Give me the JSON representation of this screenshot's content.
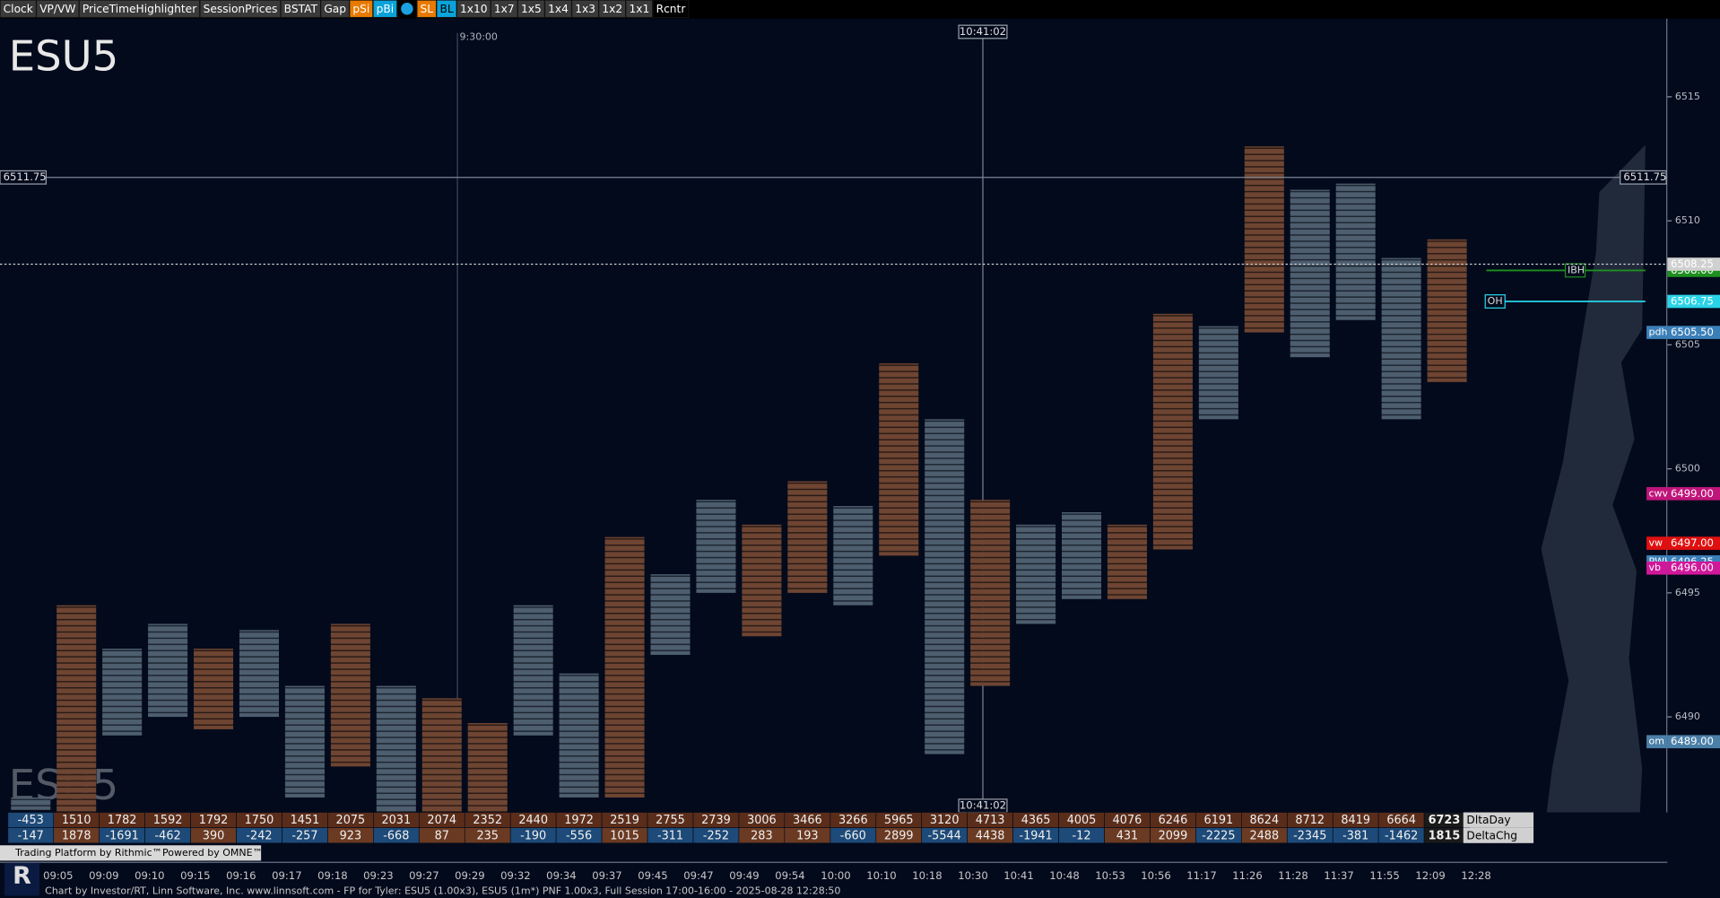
{
  "toolbar": {
    "buttons": [
      "Clock",
      "VP/VW",
      "PriceTimeHighlighter",
      "SessionPrices",
      "BSTAT",
      "Gap",
      "pSi",
      "pBi",
      "SL",
      "BL",
      "1x10",
      "1x7",
      "1x5",
      "1x4",
      "1x3",
      "1x2",
      "1x1",
      "Rcntr"
    ]
  },
  "chart_data": {
    "type": "footprint",
    "symbol": "ESU5",
    "x": [
      "09:05",
      "09:09",
      "09:10",
      "09:15",
      "09:16",
      "09:17",
      "09:18",
      "09:23",
      "09:27",
      "09:29",
      "09:32",
      "09:34",
      "09:37",
      "09:45",
      "09:47",
      "09:49",
      "09:54",
      "10:00",
      "10:10",
      "10:18",
      "10:30",
      "10:41",
      "10:48",
      "10:53",
      "10:56",
      "11:17",
      "11:26",
      "11:28",
      "11:37",
      "11:55",
      "12:09",
      "12:28"
    ],
    "high": [
      6486.75,
      6494.5,
      6492.75,
      6493.75,
      6492.75,
      6493.5,
      6491.25,
      6493.75,
      6491.25,
      6490.75,
      6489.75,
      6494.5,
      6491.75,
      6497.25,
      6495.75,
      6498.75,
      6497.75,
      6499.5,
      6498.5,
      6504.25,
      6502,
      6498.75,
      6497.75,
      6498.25,
      6497.75,
      6506.25,
      6505.75,
      6513,
      6511.25,
      6511.5,
      6508.5,
      6509.25
    ],
    "low": [
      6486.25,
      6486,
      6489.25,
      6490,
      6489.5,
      6490,
      6486.75,
      6488,
      6486,
      6486,
      6486,
      6489.25,
      6486.75,
      6486.75,
      6492.5,
      6495,
      6493.25,
      6495,
      6494.5,
      6496.5,
      6488.5,
      6491.25,
      6493.75,
      6494.75,
      6494.75,
      6496.75,
      6502,
      6505.5,
      6504.5,
      6506,
      6502,
      6503.5
    ],
    "ylim": [
      6486.15,
      6518.15
    ],
    "yticks": [
      6490,
      6495,
      6500,
      6505,
      6510,
      6515
    ],
    "rows": [
      {
        "name": "DltaDay",
        "values": [
          -453,
          1510,
          1782,
          1592,
          1792,
          1750,
          1451,
          2075,
          2031,
          2074,
          2352,
          2440,
          1972,
          2519,
          2755,
          2739,
          3006,
          3466,
          3266,
          5965,
          3120,
          4713,
          4365,
          4005,
          4076,
          6246,
          6191,
          8624,
          8712,
          8419,
          6664,
          6723
        ]
      },
      {
        "name": "DeltaChg",
        "values": [
          -147,
          1878,
          -1691,
          -462,
          390,
          -242,
          -257,
          923,
          -668,
          87,
          235,
          -190,
          -556,
          1015,
          -311,
          -252,
          283,
          193,
          -660,
          2899,
          -5544,
          4438,
          -1941,
          -12,
          431,
          2099,
          -2225,
          2488,
          -2345,
          -381,
          -1462,
          1815
        ]
      }
    ],
    "crosshair": {
      "price": 6511.75,
      "time": "10:41:02"
    },
    "session_marker": "9:30:00",
    "levels": [
      {
        "tag": "IBH",
        "value": {
          "value": 6508,
          "label": "6508.00"
        },
        "color": "#1f8f1f"
      },
      {
        "tag": null,
        "value": 6508.25,
        "color": "#d0d0d0"
      },
      {
        "tag": "OH",
        "value": 6506.75,
        "color": "#2ad4e8"
      },
      {
        "tag": "pdh",
        "value": {
          "value": 6505.5,
          "label": "6505.50"
        },
        "color": "#3a7fb8"
      },
      {
        "tag": "cwv",
        "value": {
          "value": 6499,
          "label": "6499.00"
        },
        "color": "#c0157a"
      },
      {
        "tag": "vw",
        "value": {
          "value": 6497,
          "label": "6497.00"
        },
        "color": "#e01010"
      },
      {
        "tag": "PWH",
        "value": 6496.25,
        "color": "#3a7fb8"
      },
      {
        "tag": "vb",
        "value": {
          "value": 6496,
          "label": "6496.00"
        },
        "color": "#d0189a"
      },
      {
        "tag": "om",
        "value": {
          "value": 6489,
          "label": "6489.00"
        },
        "color": "#4a7fa8"
      }
    ]
  },
  "footer": {
    "rithmic": "Trading Platform by Rithmic™",
    "omne": "Powered by OMNE™",
    "credit": "Chart by Investor/RT, Linn Software, Inc. www.linnsoft.com - FP for Tyler: ESU5 (1.00x3), ESU5 (1m*) PNF 1.00x3, Full Session 17:00-16:00 - 2025-08-28 12:28:50"
  }
}
